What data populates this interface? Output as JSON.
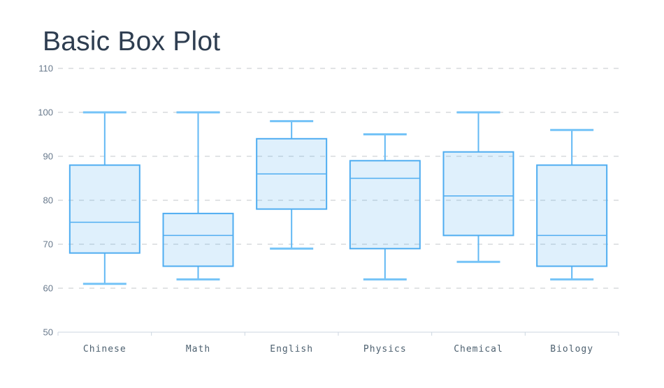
{
  "title": "Basic Box Plot",
  "chart_data": {
    "type": "boxplot",
    "title": "Basic Box Plot",
    "categories": [
      "Chinese",
      "Math",
      "English",
      "Physics",
      "Chemical",
      "Biology"
    ],
    "boxes": [
      {
        "category": "Chinese",
        "min": 61,
        "q1": 68,
        "median": 75,
        "q3": 88,
        "max": 100
      },
      {
        "category": "Math",
        "min": 62,
        "q1": 65,
        "median": 72,
        "q3": 77,
        "max": 100
      },
      {
        "category": "English",
        "min": 69,
        "q1": 78,
        "median": 86,
        "q3": 94,
        "max": 98
      },
      {
        "category": "Physics",
        "min": 62,
        "q1": 69,
        "median": 85,
        "q3": 89,
        "max": 95
      },
      {
        "category": "Chemical",
        "min": 66,
        "q1": 72,
        "median": 81,
        "q3": 91,
        "max": 100
      },
      {
        "category": "Biology",
        "min": 62,
        "q1": 65,
        "median": 72,
        "q3": 88,
        "max": 96
      }
    ],
    "ylim": [
      50,
      110
    ],
    "y_ticks": [
      50,
      60,
      70,
      80,
      90,
      100,
      110
    ],
    "xlabel": "",
    "ylabel": "",
    "grid": "horizontal-dashed",
    "legend": "none"
  },
  "colors": {
    "background": "#ffffff",
    "title": "#2e3d50",
    "box_border": "#4fadf1",
    "box_fill": "rgba(80,174,241,0.18)",
    "whisker": "#62b8f4",
    "whisker_cap": "#74c3f7",
    "gridline": "#c3c7cb",
    "axis_line": "#ccd6e0",
    "y_label": "#68798c",
    "x_label": "#4e6170"
  }
}
